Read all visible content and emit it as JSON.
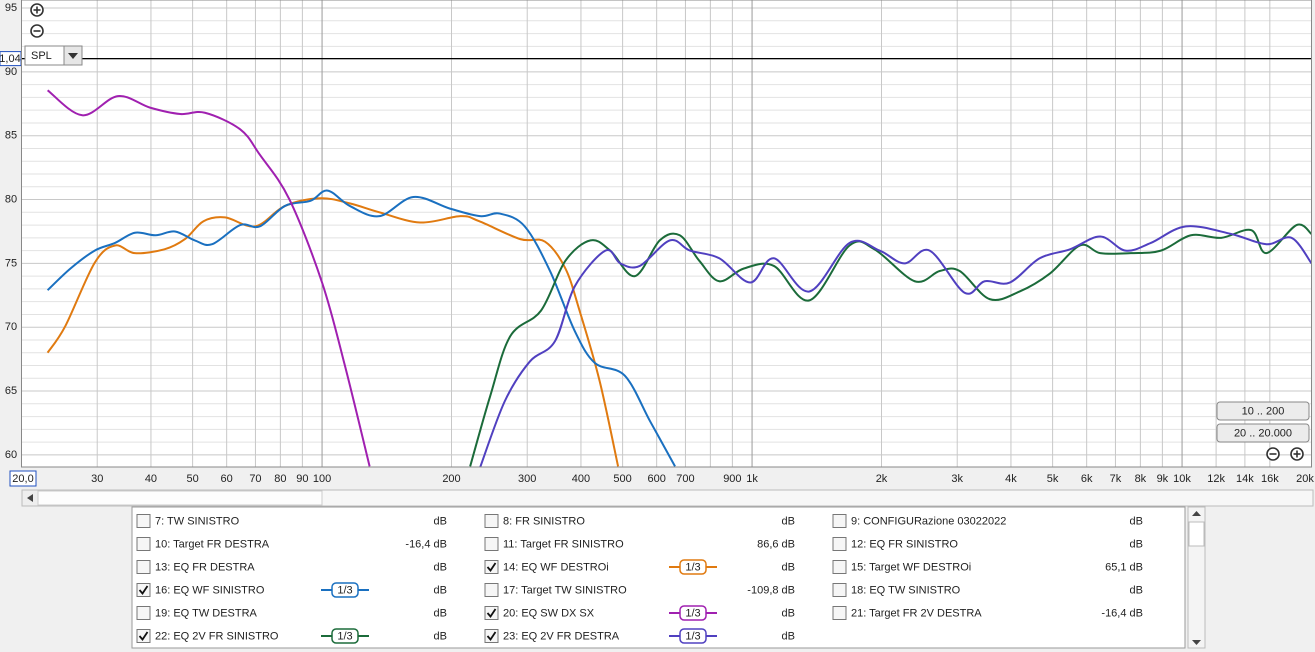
{
  "chart_data": {
    "type": "line",
    "xscale": "log",
    "xlim": [
      20,
      20000
    ],
    "ylim": [
      59.05,
      95.63
    ],
    "grid": true,
    "xticks": [
      {
        "value": 20,
        "label": "20,0"
      },
      30,
      40,
      50,
      60,
      70,
      80,
      90,
      100,
      200,
      300,
      400,
      500,
      600,
      700,
      900,
      {
        "value": 1000,
        "label": "1k"
      },
      {
        "value": 2000,
        "label": "2k"
      },
      {
        "value": 3000,
        "label": "3k"
      },
      {
        "value": 4000,
        "label": "4k"
      },
      {
        "value": 5000,
        "label": "5k"
      },
      {
        "value": 6000,
        "label": "6k"
      },
      {
        "value": 7000,
        "label": "7k"
      },
      {
        "value": 8000,
        "label": "8k"
      },
      {
        "value": 9000,
        "label": "9k"
      },
      {
        "value": 10000,
        "label": "10k"
      },
      {
        "value": 12000,
        "label": "12k",
        "muted": true
      },
      {
        "value": 14000,
        "label": "14k",
        "muted": true
      },
      {
        "value": 16000,
        "label": "16k",
        "muted": true
      },
      {
        "value": 20000,
        "label": "20k"
      }
    ],
    "x_minor_ticks": [
      800
    ],
    "yticks": [
      60,
      65,
      70,
      75,
      80,
      85,
      90,
      95
    ],
    "y_minor_ticks": [
      61,
      62,
      63,
      64,
      66,
      67,
      68,
      69,
      71,
      72,
      73,
      74,
      76,
      77,
      78,
      79,
      81,
      82,
      83,
      84,
      86,
      87,
      88,
      89,
      91,
      92,
      93,
      94
    ],
    "cursor": {
      "value": 91.04,
      "label": "1,04"
    },
    "y_axis_menu": "SPL",
    "range_buttons": [
      "10 .. 200",
      "20 .. 20.000"
    ],
    "series": [
      {
        "name": "7: TW SINISTRO",
        "color": "#c06010",
        "readout": "dB",
        "checked": false
      },
      {
        "name": "8: FR SINISTRO",
        "color": "#1a8a9a",
        "readout": "dB",
        "checked": false
      },
      {
        "name": "9: CONFIGURazione 03022022",
        "color": "#9a20a0",
        "readout": "dB",
        "checked": false
      },
      {
        "name": "10: Target FR DESTRA",
        "color": "#9a20a0",
        "readout": "-16,4 dB",
        "checked": false
      },
      {
        "name": "11: Target FR SINISTRO",
        "color": "#a01818",
        "readout": "86,6 dB",
        "checked": false
      },
      {
        "name": "12: EQ FR SINISTRO",
        "color": "#1a7a30",
        "readout": "dB",
        "checked": false
      },
      {
        "name": "13: EQ FR DESTRA",
        "color": "#2060c0",
        "readout": "dB",
        "checked": false
      },
      {
        "name": "14: EQ WF DESTROi",
        "color": "#e07a10",
        "readout": "dB",
        "checked": true,
        "smoothing": "1/3",
        "x": [
          23,
          25.3,
          29.6,
          33,
          36.7,
          43,
          48,
          53,
          59.5,
          70,
          82,
          99,
          116,
          136,
          169,
          210,
          232,
          289,
          330,
          368,
          397,
          442,
          488
        ],
        "values": [
          68.0,
          70.1,
          75.05,
          76.4,
          75.8,
          76.1,
          76.9,
          78.3,
          78.6,
          77.9,
          79.5,
          80.1,
          79.7,
          79.0,
          78.2,
          78.7,
          78.3,
          76.9,
          76.7,
          74.6,
          71.3,
          65.8,
          59.1
        ]
      },
      {
        "name": "15: Target WF DESTROi",
        "color": "#2a8a20",
        "readout": "65,1 dB",
        "checked": false
      },
      {
        "name": "16: EQ WF SINISTRO",
        "color": "#1a70c0",
        "readout": "dB",
        "checked": true,
        "smoothing": "1/3",
        "x": [
          23,
          26,
          29.6,
          33,
          36.7,
          41,
          45.5,
          50.6,
          55.5,
          64.5,
          71.7,
          82,
          94,
          103,
          116,
          136,
          163,
          198,
          233,
          259,
          296,
          339,
          387,
          431,
          506,
          580,
          662
        ],
        "values": [
          72.9,
          74.6,
          76.0,
          76.6,
          77.4,
          77.2,
          77.5,
          76.8,
          76.5,
          78.0,
          77.9,
          79.5,
          79.9,
          80.7,
          79.5,
          78.7,
          80.2,
          79.3,
          78.7,
          78.9,
          77.9,
          74.4,
          69.7,
          67.2,
          66.2,
          62.6,
          59.1
        ]
      },
      {
        "name": "17: Target TW SINISTRO",
        "color": "#c06010",
        "readout": "-109,8 dB",
        "checked": false
      },
      {
        "name": "18: EQ TW SINISTRO",
        "color": "#2070c0",
        "readout": "dB",
        "checked": false
      },
      {
        "name": "19: EQ TW DESTRA",
        "color": "#9a20a0",
        "readout": "dB",
        "checked": false
      },
      {
        "name": "20: EQ SW DX SX",
        "color": "#a020b0",
        "readout": "dB",
        "checked": true,
        "smoothing": "1/3",
        "x": [
          23,
          27.7,
          33.5,
          39.8,
          46.8,
          53.4,
          64.5,
          71.7,
          84,
          100,
          113,
          129
        ],
        "values": [
          88.56,
          86.6,
          88.1,
          87.2,
          86.7,
          86.8,
          85.5,
          83.5,
          80.0,
          73.5,
          67.0,
          59.1
        ]
      },
      {
        "name": "21: Target FR 2V DESTRA",
        "color": "#a01818",
        "readout": "-16,4 dB",
        "checked": false
      },
      {
        "name": "22: EQ 2V FR SINISTRO",
        "color": "#1b6b3a",
        "readout": "dB",
        "checked": true,
        "smoothing": "1/3",
        "x": [
          221,
          246,
          274,
          323,
          368,
          421,
          468,
          534,
          610,
          679,
          754,
          839,
          957,
          1124,
          1359,
          1685,
          1927,
          2389,
          2731,
          3040,
          3569,
          4193,
          4927,
          5790,
          6454,
          7600,
          8930,
          10490,
          12330,
          14490,
          15710,
          18460,
          20000
        ],
        "values": [
          59.1,
          64.6,
          69.3,
          71.3,
          75.2,
          76.8,
          76.0,
          74.0,
          76.8,
          77.2,
          75.2,
          73.6,
          74.6,
          74.8,
          72.1,
          76.4,
          76.1,
          73.6,
          74.4,
          74.4,
          72.2,
          72.8,
          74.2,
          76.4,
          75.8,
          75.8,
          76.0,
          77.2,
          77.0,
          77.6,
          75.8,
          78.0,
          77.3
        ]
      },
      {
        "name": "23: EQ 2V FR DESTRA",
        "color": "#5040c0",
        "readout": "dB",
        "checked": true,
        "smoothing": "1/3",
        "x": [
          233,
          266,
          304,
          348,
          387,
          456,
          494,
          548,
          644,
          717,
          839,
          990,
          1124,
          1359,
          1685,
          1980,
          2263,
          2589,
          3120,
          3475,
          3975,
          4666,
          5490,
          6454,
          7390,
          8460,
          10215,
          13010,
          15710,
          17970,
          20000
        ],
        "values": [
          59.0,
          64.2,
          67.3,
          68.9,
          73.2,
          76.0,
          75.0,
          74.8,
          76.8,
          76.0,
          75.4,
          73.5,
          75.4,
          72.8,
          76.6,
          76.0,
          75.0,
          76.0,
          72.7,
          73.6,
          73.5,
          75.4,
          76.1,
          77.1,
          76.0,
          76.6,
          77.9,
          77.3,
          76.5,
          77.0,
          75.0
        ]
      }
    ]
  }
}
